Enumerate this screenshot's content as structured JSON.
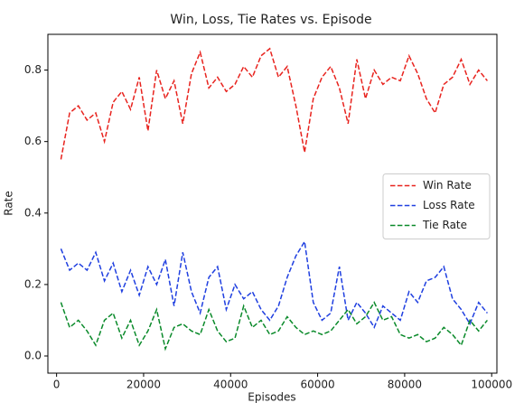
{
  "chart_data": {
    "type": "line",
    "title": "Win, Loss, Tie Rates vs. Episode",
    "xlabel": "Episodes",
    "ylabel": "Rate",
    "x": [
      1000,
      3000,
      5000,
      7000,
      9000,
      11000,
      13000,
      15000,
      17000,
      19000,
      21000,
      23000,
      25000,
      27000,
      29000,
      31000,
      33000,
      35000,
      37000,
      39000,
      41000,
      43000,
      45000,
      47000,
      49000,
      51000,
      53000,
      55000,
      57000,
      59000,
      61000,
      63000,
      65000,
      67000,
      69000,
      71000,
      73000,
      75000,
      77000,
      79000,
      81000,
      83000,
      85000,
      87000,
      89000,
      91000,
      93000,
      95000,
      97000,
      99000
    ],
    "series": [
      {
        "name": "Win Rate",
        "color": "#e8231e",
        "values": [
          0.55,
          0.68,
          0.7,
          0.66,
          0.68,
          0.6,
          0.71,
          0.74,
          0.69,
          0.78,
          0.63,
          0.8,
          0.72,
          0.77,
          0.65,
          0.79,
          0.85,
          0.75,
          0.78,
          0.74,
          0.76,
          0.81,
          0.78,
          0.84,
          0.86,
          0.78,
          0.81,
          0.7,
          0.57,
          0.72,
          0.78,
          0.81,
          0.75,
          0.65,
          0.83,
          0.72,
          0.8,
          0.76,
          0.78,
          0.77,
          0.84,
          0.79,
          0.72,
          0.68,
          0.76,
          0.78,
          0.83,
          0.76,
          0.8,
          0.77
        ]
      },
      {
        "name": "Loss Rate",
        "color": "#1f3fe0",
        "values": [
          0.3,
          0.24,
          0.26,
          0.24,
          0.29,
          0.21,
          0.26,
          0.18,
          0.24,
          0.17,
          0.25,
          0.2,
          0.27,
          0.14,
          0.29,
          0.18,
          0.12,
          0.22,
          0.25,
          0.13,
          0.2,
          0.16,
          0.18,
          0.13,
          0.1,
          0.14,
          0.22,
          0.28,
          0.32,
          0.15,
          0.1,
          0.12,
          0.25,
          0.1,
          0.15,
          0.12,
          0.08,
          0.14,
          0.12,
          0.1,
          0.18,
          0.15,
          0.21,
          0.22,
          0.25,
          0.16,
          0.13,
          0.09,
          0.15,
          0.12
        ]
      },
      {
        "name": "Tie Rate",
        "color": "#0a8a2a",
        "values": [
          0.15,
          0.08,
          0.1,
          0.07,
          0.03,
          0.1,
          0.12,
          0.05,
          0.1,
          0.03,
          0.07,
          0.13,
          0.02,
          0.08,
          0.09,
          0.07,
          0.06,
          0.13,
          0.07,
          0.04,
          0.05,
          0.14,
          0.08,
          0.1,
          0.06,
          0.07,
          0.11,
          0.08,
          0.06,
          0.07,
          0.06,
          0.07,
          0.1,
          0.13,
          0.09,
          0.11,
          0.15,
          0.1,
          0.11,
          0.06,
          0.05,
          0.06,
          0.04,
          0.05,
          0.08,
          0.06,
          0.03,
          0.1,
          0.07,
          0.1
        ]
      }
    ],
    "xlim": [
      -2000,
      101200
    ],
    "ylim": [
      -0.048,
      0.9
    ],
    "xticks": [
      0,
      20000,
      40000,
      60000,
      80000,
      100000
    ],
    "yticks": [
      {
        "value": 0,
        "label": "0.0"
      },
      0.2,
      0.4,
      0.6,
      0.8
    ],
    "legend": "center right"
  }
}
